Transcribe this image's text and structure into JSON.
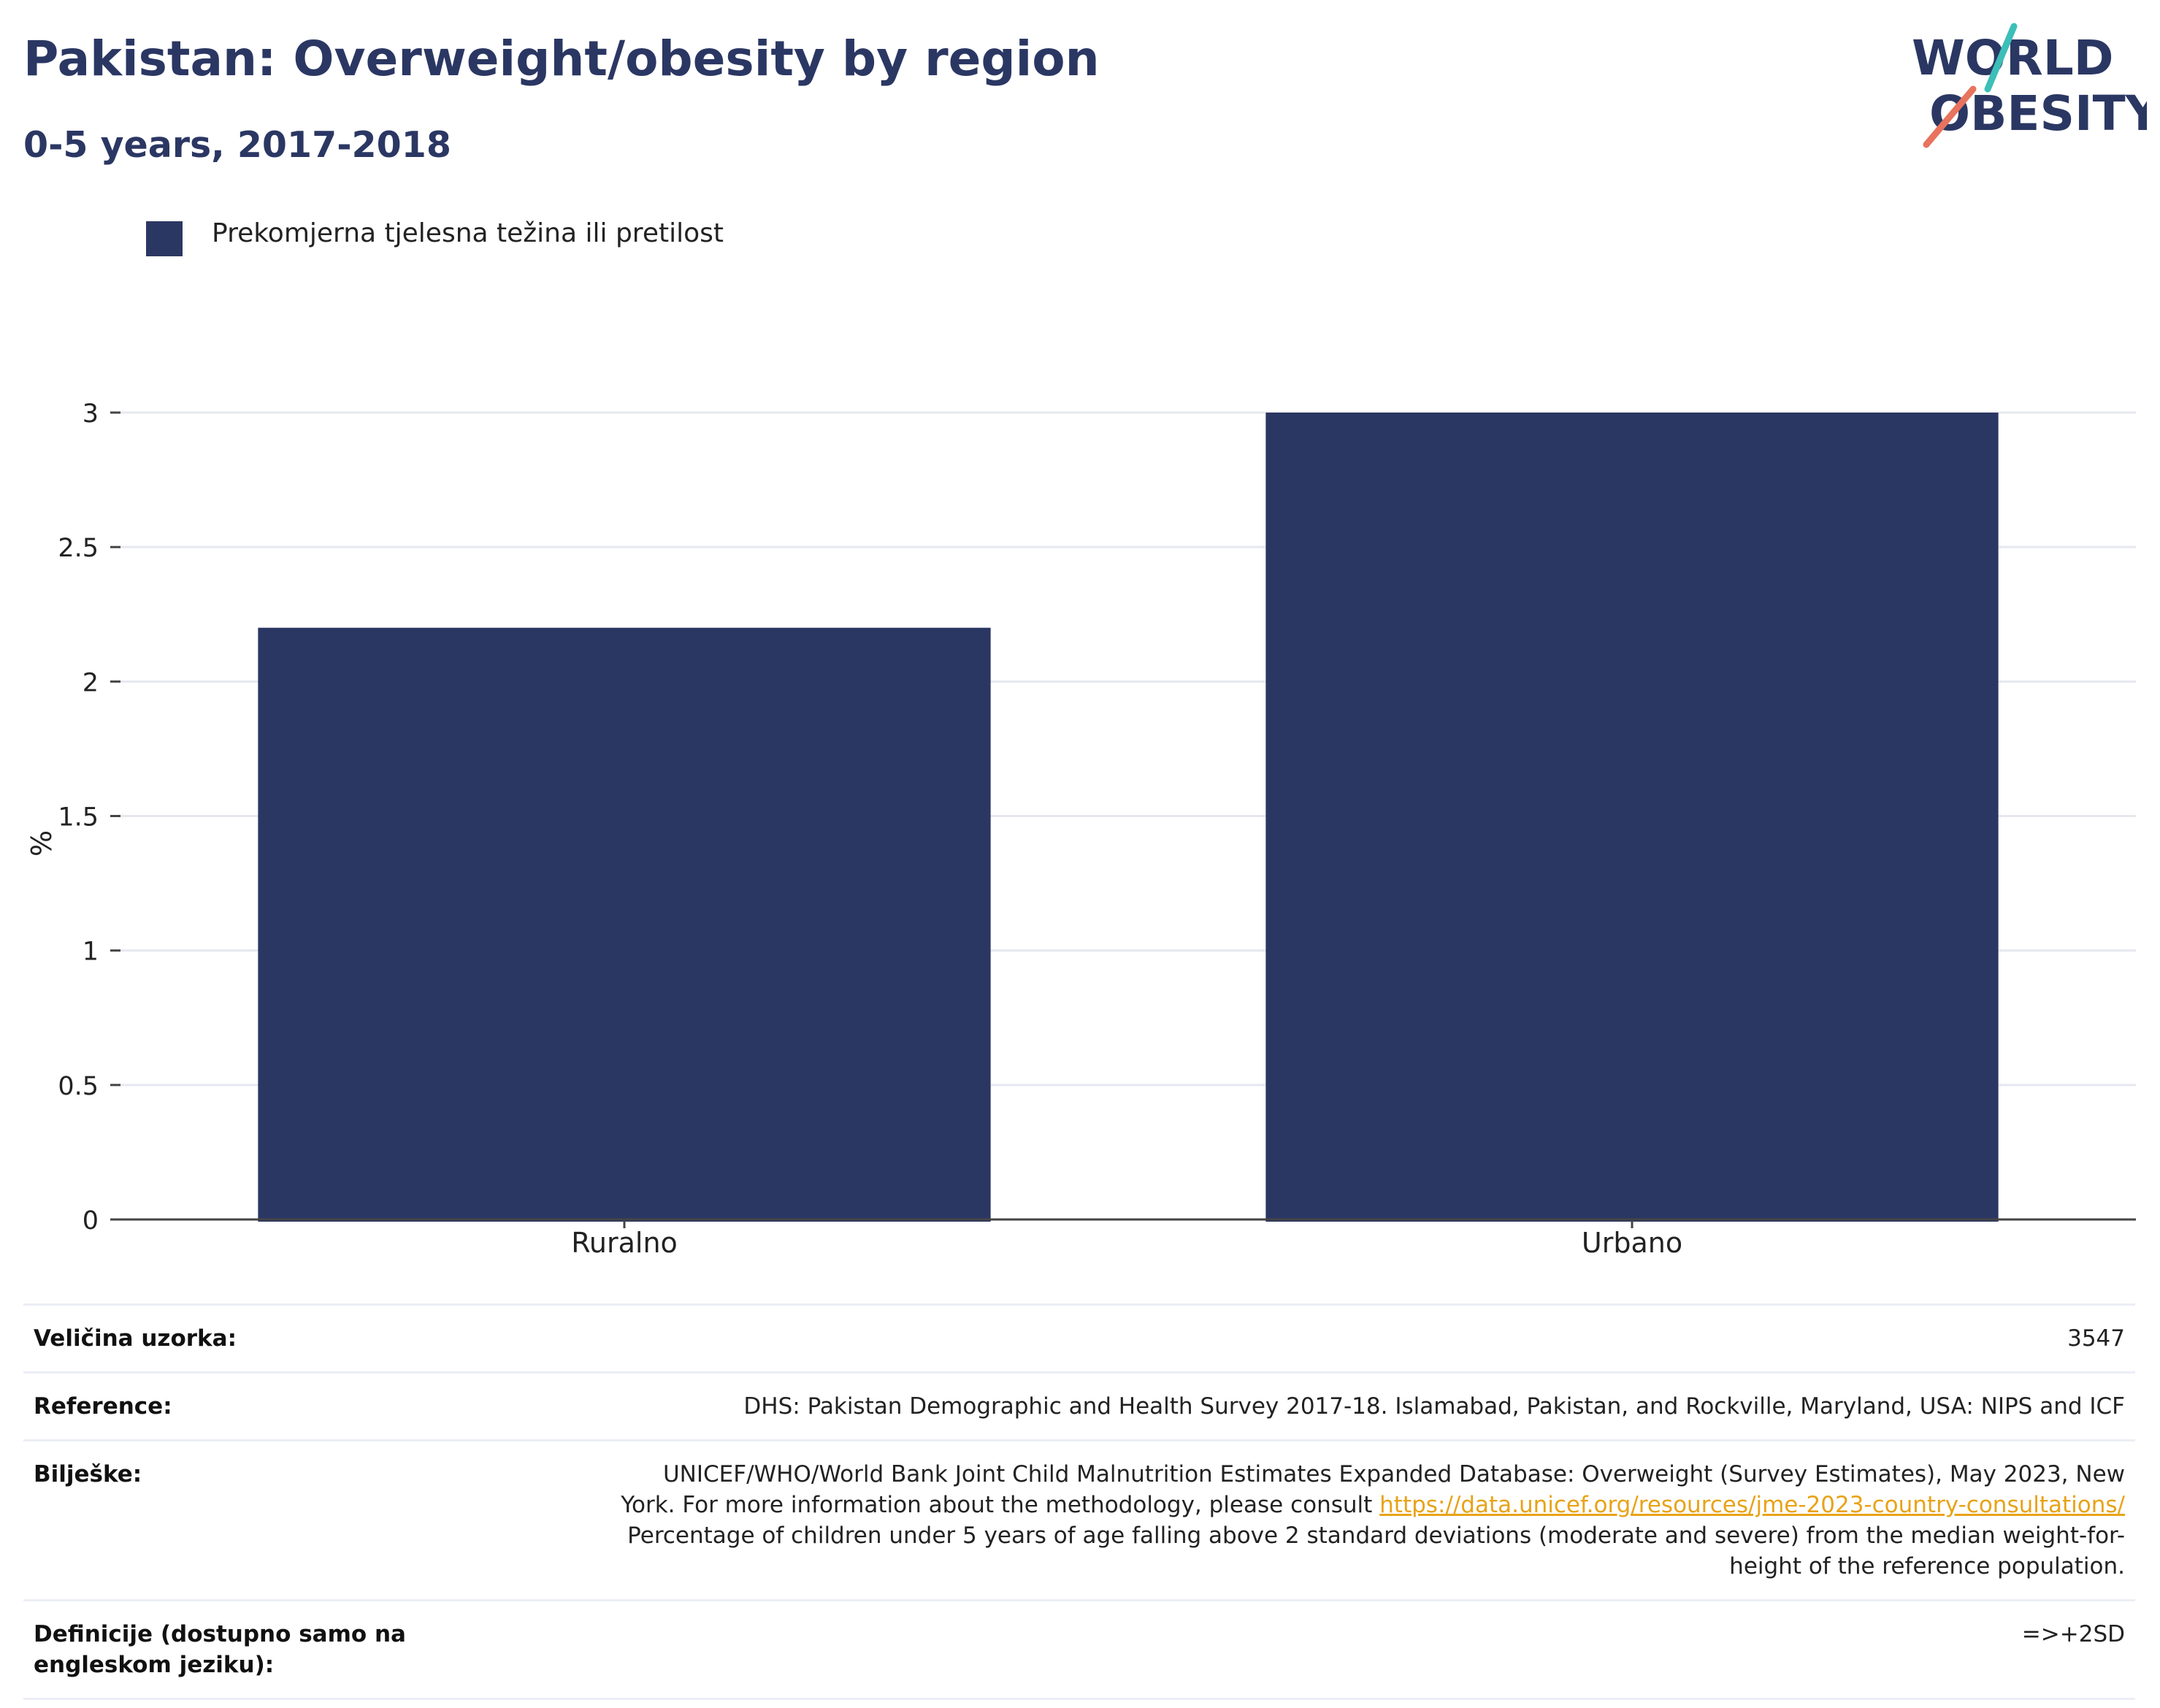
{
  "title": "Pakistan: Overweight/obesity by region",
  "subtitle": "0-5 years, 2017-2018",
  "logo": {
    "line1": "WORLD",
    "line2": "OBESITY",
    "accent_teal": "#3cbfb8",
    "accent_red": "#e8735e"
  },
  "legend": {
    "label": "Prekomjerna tjelesna težina ili pretilost",
    "color": "#2b3763"
  },
  "chart_data": {
    "type": "bar",
    "categories": [
      "Ruralno",
      "Urbano"
    ],
    "series": [
      {
        "name": "Prekomjerna tjelesna težina ili pretilost",
        "values": [
          2.2,
          3.0
        ],
        "color": "#2b3763"
      }
    ],
    "title": "Pakistan: Overweight/obesity by region",
    "subtitle": "0-5 years, 2017-2018",
    "xlabel": "",
    "ylabel": "%",
    "ylim": [
      0,
      3
    ],
    "yticks": [
      "0",
      "0.5",
      "1",
      "1.5",
      "2",
      "2.5",
      "3"
    ],
    "grid": true,
    "legend_position": "top-left"
  },
  "table": {
    "sample_size_label": "Veličina uzorka:",
    "sample_size_value": "3547",
    "reference_label": "Reference:",
    "reference_value": "DHS: Pakistan Demographic and Health Survey 2017-18. Islamabad, Pakistan, and Rockville, Maryland, USA: NIPS and ICF",
    "notes_label": "Bilješke:",
    "notes_line1": "UNICEF/WHO/World Bank Joint Child Malnutrition Estimates Expanded Database: Overweight (Survey Estimates), May 2023, New",
    "notes_line2_prefix": "York. For more information about the methodology, please consult ",
    "notes_link": "https://data.unicef.org/resources/jme-2023-country-consultations/",
    "notes_line3": "Percentage of children under 5 years of age falling above 2 standard deviations (moderate and severe) from the median weight-for-",
    "notes_line4": "height of the reference population.",
    "definitions_label": "Definicije (dostupno samo na engleskom jeziku):",
    "definitions_value": "=>+2SD"
  }
}
